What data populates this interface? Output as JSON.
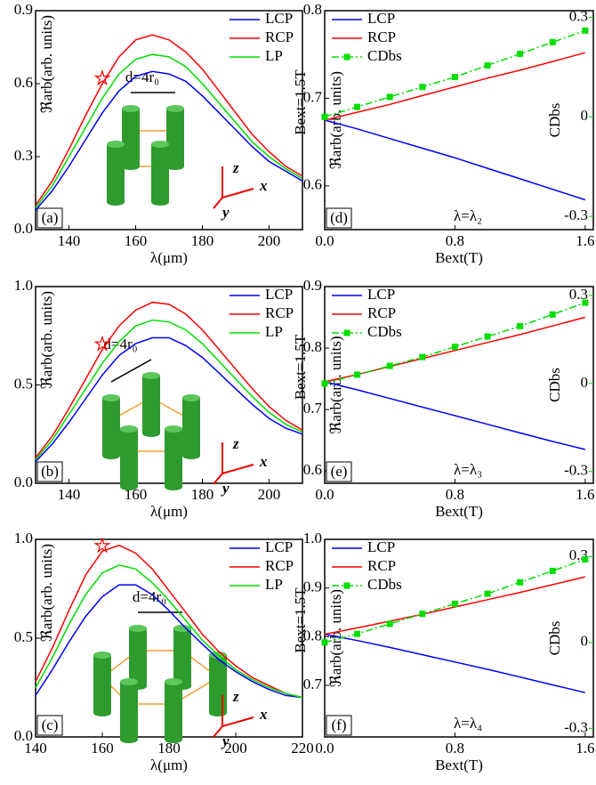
{
  "chart_data": [
    {
      "type": "line",
      "label": "(a)",
      "xlabel": "λ(μm)",
      "ylabel": "ℜarb(arb. units)",
      "inset_label": "d=4r₀",
      "axis_names": [
        "z",
        "x",
        "y"
      ],
      "legend": "upper right",
      "x": [
        130,
        135,
        140,
        145,
        150,
        155,
        160,
        165,
        170,
        175,
        180,
        185,
        190,
        195,
        200,
        205,
        210
      ],
      "xlim": [
        130,
        210
      ],
      "xticks": [
        140,
        160,
        180,
        200
      ],
      "ylim": [
        0,
        0.9
      ],
      "yticks": [
        {
          "value": 0,
          "label": "0.0"
        },
        0.3,
        0.6,
        0.9
      ],
      "series": [
        {
          "name": "LCP",
          "color": "#0000ff",
          "values": [
            0.08,
            0.16,
            0.26,
            0.37,
            0.48,
            0.57,
            0.63,
            0.65,
            0.64,
            0.61,
            0.55,
            0.48,
            0.41,
            0.34,
            0.28,
            0.24,
            0.2
          ]
        },
        {
          "name": "RCP",
          "color": "#ff0000",
          "values": [
            0.1,
            0.2,
            0.33,
            0.47,
            0.6,
            0.71,
            0.78,
            0.8,
            0.78,
            0.73,
            0.66,
            0.57,
            0.48,
            0.39,
            0.32,
            0.26,
            0.22
          ]
        },
        {
          "name": "LP",
          "color": "#00dd00",
          "values": [
            0.09,
            0.18,
            0.3,
            0.42,
            0.54,
            0.64,
            0.7,
            0.72,
            0.71,
            0.67,
            0.6,
            0.52,
            0.44,
            0.36,
            0.3,
            0.25,
            0.21
          ]
        }
      ]
    },
    {
      "type": "line",
      "label": "(d)",
      "xlabel": "Bext(T)",
      "ylabel": "ℜarb(arb. units)",
      "y2label": "CDbs",
      "side_label": "Bext=1.5T",
      "note": "λ=λ₂",
      "legend": "upper left",
      "x": [
        0,
        0.2,
        0.4,
        0.6,
        0.8,
        1.0,
        1.2,
        1.4,
        1.6
      ],
      "xlim": [
        0,
        1.65
      ],
      "xticks": [
        {
          "value": 0,
          "label": "0.0"
        },
        0.8,
        1.6
      ],
      "ylim": [
        0.55,
        0.8
      ],
      "yticks": [
        0.6,
        0.7,
        0.8
      ],
      "y2lim": [
        -0.34,
        0.32
      ],
      "y2ticks": [
        -0.3,
        0,
        0.3
      ],
      "series": [
        {
          "name": "LCP",
          "color": "#0000ff",
          "values": [
            0.675,
            0.665,
            0.654,
            0.643,
            0.632,
            0.62,
            0.608,
            0.596,
            0.584
          ]
        },
        {
          "name": "RCP",
          "color": "#ff0000",
          "values": [
            0.675,
            0.684,
            0.693,
            0.703,
            0.713,
            0.723,
            0.732,
            0.742,
            0.752
          ]
        },
        {
          "name": "CDbs",
          "color": "#00dd00",
          "axis": "y2",
          "marker": "square",
          "values": [
            0,
            0.03,
            0.06,
            0.09,
            0.12,
            0.155,
            0.19,
            0.225,
            0.26
          ]
        }
      ]
    },
    {
      "type": "line",
      "label": "(b)",
      "xlabel": "λ(μm)",
      "ylabel": "ℜarb(arb. units)",
      "inset_label": "d=4r₀",
      "axis_names": [
        "z",
        "x",
        "y"
      ],
      "legend": "upper right",
      "x": [
        130,
        135,
        140,
        145,
        150,
        155,
        160,
        165,
        170,
        175,
        180,
        185,
        190,
        195,
        200,
        205,
        210
      ],
      "xlim": [
        130,
        210
      ],
      "xticks": [
        140,
        160,
        180,
        200
      ],
      "ylim": [
        0,
        1
      ],
      "yticks": [
        {
          "value": 0,
          "label": "0.0"
        },
        0.5,
        {
          "value": 1,
          "label": "1.0"
        }
      ],
      "series": [
        {
          "name": "LCP",
          "color": "#0000ff",
          "values": [
            0.11,
            0.2,
            0.31,
            0.43,
            0.55,
            0.65,
            0.71,
            0.74,
            0.74,
            0.7,
            0.64,
            0.56,
            0.48,
            0.4,
            0.33,
            0.28,
            0.25
          ]
        },
        {
          "name": "RCP",
          "color": "#ff0000",
          "values": [
            0.13,
            0.24,
            0.38,
            0.53,
            0.68,
            0.8,
            0.88,
            0.92,
            0.91,
            0.86,
            0.78,
            0.68,
            0.58,
            0.48,
            0.39,
            0.32,
            0.27
          ]
        },
        {
          "name": "LP",
          "color": "#00dd00",
          "values": [
            0.12,
            0.22,
            0.35,
            0.48,
            0.61,
            0.72,
            0.8,
            0.83,
            0.82,
            0.78,
            0.71,
            0.62,
            0.53,
            0.44,
            0.36,
            0.3,
            0.26
          ]
        }
      ]
    },
    {
      "type": "line",
      "label": "(e)",
      "xlabel": "Bext(T)",
      "ylabel": "ℜarb(arb. units)",
      "y2label": "CDbs",
      "side_label": "Bext=1.5T",
      "note": "λ=λ₃",
      "legend": "upper left",
      "x": [
        0,
        0.2,
        0.4,
        0.6,
        0.8,
        1.0,
        1.2,
        1.4,
        1.6
      ],
      "xlim": [
        0,
        1.65
      ],
      "xticks": [
        {
          "value": 0,
          "label": "0.0"
        },
        0.8,
        1.6
      ],
      "ylim": [
        0.58,
        0.9
      ],
      "yticks": [
        0.6,
        0.7,
        0.8,
        0.9
      ],
      "y2lim": [
        -0.34,
        0.33
      ],
      "y2ticks": [
        -0.3,
        0,
        0.3
      ],
      "series": [
        {
          "name": "LCP",
          "color": "#0000ff",
          "values": [
            0.745,
            0.732,
            0.718,
            0.704,
            0.69,
            0.676,
            0.662,
            0.648,
            0.635
          ]
        },
        {
          "name": "RCP",
          "color": "#ff0000",
          "values": [
            0.745,
            0.757,
            0.77,
            0.783,
            0.796,
            0.809,
            0.822,
            0.836,
            0.85
          ]
        },
        {
          "name": "CDbs",
          "color": "#00dd00",
          "axis": "y2",
          "marker": "square",
          "values": [
            0,
            0.03,
            0.06,
            0.09,
            0.125,
            0.16,
            0.195,
            0.235,
            0.275
          ]
        }
      ]
    },
    {
      "type": "line",
      "label": "(c)",
      "xlabel": "λ(μm)",
      "ylabel": "ℜarb(arb. units)",
      "inset_label": "d=4r₀",
      "axis_names": [
        "z",
        "x",
        "y"
      ],
      "legend": "upper right",
      "x": [
        140,
        145,
        150,
        155,
        160,
        165,
        170,
        175,
        180,
        185,
        190,
        195,
        200,
        205,
        210,
        215,
        220
      ],
      "xlim": [
        140,
        220
      ],
      "xticks": [
        140,
        160,
        180,
        200,
        220
      ],
      "ylim": [
        0,
        1
      ],
      "yticks": [
        {
          "value": 0,
          "label": "0.0"
        },
        0.5,
        {
          "value": 1,
          "label": "1.0"
        }
      ],
      "series": [
        {
          "name": "LCP",
          "color": "#0000ff",
          "values": [
            0.21,
            0.34,
            0.48,
            0.61,
            0.71,
            0.77,
            0.77,
            0.72,
            0.64,
            0.55,
            0.47,
            0.39,
            0.33,
            0.28,
            0.24,
            0.21,
            0.2
          ]
        },
        {
          "name": "RCP",
          "color": "#ff0000",
          "values": [
            0.28,
            0.45,
            0.64,
            0.82,
            0.94,
            0.97,
            0.93,
            0.85,
            0.74,
            0.63,
            0.52,
            0.43,
            0.36,
            0.3,
            0.26,
            0.22,
            0.2
          ]
        },
        {
          "name": "LP",
          "color": "#00dd00",
          "values": [
            0.25,
            0.4,
            0.57,
            0.72,
            0.83,
            0.87,
            0.85,
            0.78,
            0.69,
            0.59,
            0.49,
            0.41,
            0.34,
            0.29,
            0.25,
            0.22,
            0.2
          ]
        }
      ]
    },
    {
      "type": "line",
      "label": "(f)",
      "xlabel": "Bext(T)",
      "ylabel": "ℜarb(arb. units)",
      "y2label": "CDbs",
      "side_label": "Bext=1.5T",
      "note": "λ=λ₄",
      "legend": "upper left",
      "x": [
        0,
        0.2,
        0.4,
        0.6,
        0.8,
        1.0,
        1.2,
        1.4,
        1.6
      ],
      "xlim": [
        0,
        1.65
      ],
      "xticks": [
        {
          "value": 0,
          "label": "0.0"
        },
        0.8,
        1.6
      ],
      "ylim": [
        0.594,
        1
      ],
      "yticks": [
        0.7,
        0.8,
        0.9,
        {
          "value": 1,
          "label": "1.0"
        }
      ],
      "y2lim": [
        -0.33,
        0.36
      ],
      "y2ticks": [
        -0.3,
        0,
        0.3
      ],
      "series": [
        {
          "name": "LCP",
          "color": "#0000ff",
          "values": [
            0.805,
            0.792,
            0.778,
            0.763,
            0.748,
            0.733,
            0.717,
            0.701,
            0.685
          ]
        },
        {
          "name": "RCP",
          "color": "#ff0000",
          "values": [
            0.805,
            0.818,
            0.832,
            0.846,
            0.861,
            0.876,
            0.891,
            0.907,
            0.923
          ]
        },
        {
          "name": "CDbs",
          "color": "#00dd00",
          "axis": "y2",
          "marker": "square",
          "values": [
            0,
            0.03,
            0.065,
            0.1,
            0.135,
            0.17,
            0.21,
            0.25,
            0.29
          ]
        }
      ]
    }
  ]
}
